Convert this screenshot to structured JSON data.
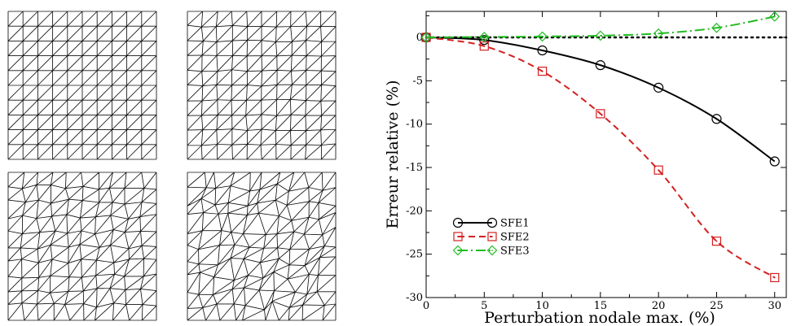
{
  "meshes": [
    {
      "name": "mesh-unperturbed",
      "perturbation": 0
    },
    {
      "name": "mesh-perturbation-low",
      "perturbation": 0.06
    },
    {
      "name": "mesh-perturbation-mid",
      "perturbation": 0.18
    },
    {
      "name": "mesh-perturbation-high",
      "perturbation": 0.3
    }
  ],
  "mesh_grid": {
    "cells": 10
  },
  "chart_data": {
    "type": "line",
    "title": "",
    "xlabel": "Perturbation nodale max. (%)",
    "ylabel": "Erreur relative (%)",
    "xlim": [
      0,
      31
    ],
    "ylim": [
      -30,
      3
    ],
    "xticks": [
      0,
      5,
      10,
      15,
      20,
      25,
      30
    ],
    "yticks": [
      0,
      -5,
      -10,
      -15,
      -20,
      -25,
      -30
    ],
    "x": [
      0,
      5,
      10,
      15,
      20,
      25,
      30
    ],
    "grid": false,
    "legend_position": "bottom-left",
    "reference_line": {
      "y": 0,
      "style": "dotted",
      "color": "#000000"
    },
    "series": [
      {
        "name": "SFE1",
        "values": [
          0,
          -0.3,
          -1.5,
          -3.2,
          -5.8,
          -9.4,
          -14.3
        ],
        "color": "#000000",
        "dash": "",
        "marker": "circle"
      },
      {
        "name": "SFE2",
        "values": [
          0,
          -1.0,
          -3.9,
          -8.8,
          -15.3,
          -23.5,
          -27.7
        ],
        "color": "#d42020",
        "dash": "8,5",
        "marker": "square"
      },
      {
        "name": "SFE3",
        "values": [
          0,
          0.05,
          0.1,
          0.2,
          0.45,
          1.1,
          2.4
        ],
        "color": "#22bb22",
        "dash": "12,4,2,4",
        "marker": "diamond"
      }
    ]
  }
}
